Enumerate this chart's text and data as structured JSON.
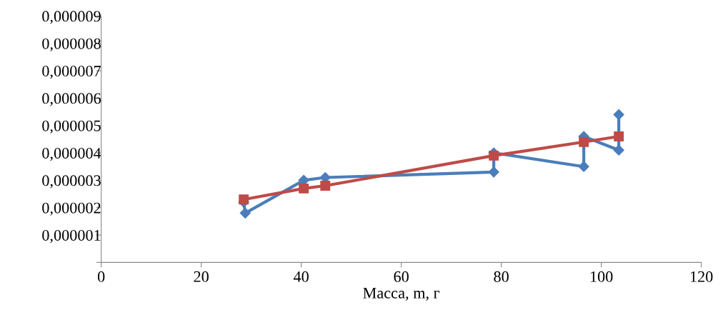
{
  "chart_data": {
    "type": "line",
    "xlabel": "Масса, m, г",
    "xlim": [
      0,
      120
    ],
    "xticks": [
      0,
      20,
      40,
      60,
      80,
      100,
      120
    ],
    "ylim": [
      0,
      9e-06
    ],
    "yticks": [
      {
        "value": 0,
        "label": null
      },
      {
        "value": 1e-06,
        "label": "0,000001"
      },
      {
        "value": 2e-06,
        "label": "0,000002"
      },
      {
        "value": 3e-06,
        "label": "0,000003"
      },
      {
        "value": 4e-06,
        "label": "0,000004"
      },
      {
        "value": 5e-06,
        "label": "0,000005"
      },
      {
        "value": 6e-06,
        "label": "0,000006"
      },
      {
        "value": 7e-06,
        "label": "0,000007"
      },
      {
        "value": 8e-06,
        "label": "0,000008"
      },
      {
        "value": 9e-06,
        "label": "0,000009"
      }
    ],
    "grid": false,
    "legend": false,
    "series": [
      {
        "color": "#4a7ebb",
        "marker": "diamond",
        "x": [
          28.5,
          28.8,
          40.5,
          44.8,
          78.5,
          78.5,
          96.5,
          96.5,
          103.5,
          103.5
        ],
        "values": [
          2.2e-06,
          1.8e-06,
          3e-06,
          3.1e-06,
          3.3e-06,
          4e-06,
          3.5e-06,
          4.6e-06,
          4.1e-06,
          5.4e-06
        ]
      },
      {
        "color": "#be4b48",
        "marker": "square",
        "x": [
          28.5,
          40.5,
          44.8,
          78.5,
          96.5,
          103.5
        ],
        "values": [
          2.3e-06,
          2.7e-06,
          2.8e-06,
          3.9e-06,
          4.4e-06,
          4.6e-06
        ]
      }
    ]
  }
}
